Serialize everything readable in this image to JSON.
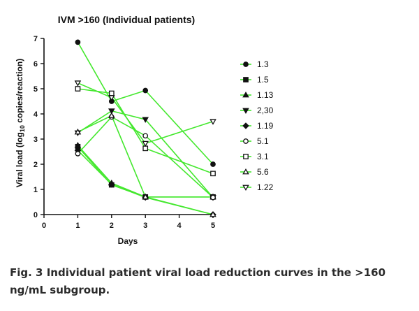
{
  "chart_data": {
    "type": "line",
    "title": "IVM >160 (Individual patients)",
    "xlabel": "Days",
    "ylabel_prefix": "Viral load (log",
    "ylabel_sub": "10",
    "ylabel_suffix": " copies/reaction)",
    "x_ticks": [
      0,
      1,
      2,
      3,
      4,
      5
    ],
    "y_ticks": [
      0,
      1,
      2,
      3,
      4,
      5,
      6,
      7
    ],
    "xlim": [
      0,
      5
    ],
    "ylim": [
      0,
      7
    ],
    "grid": false,
    "line_color": "#44e82e",
    "legend_position": "right",
    "series": [
      {
        "name": "1.3",
        "marker": "circle-filled",
        "x": [
          1,
          2,
          3,
          5
        ],
        "y": [
          6.85,
          4.5,
          4.93,
          2.0
        ]
      },
      {
        "name": "1.5",
        "marker": "square-filled",
        "x": [
          1,
          2,
          3,
          5
        ],
        "y": [
          2.7,
          1.18,
          0.7,
          0.7
        ]
      },
      {
        "name": "1.13",
        "marker": "triangle-up-filled",
        "x": [
          1,
          2,
          3,
          5
        ],
        "y": [
          2.75,
          1.25,
          0.7,
          0.7
        ]
      },
      {
        "name": "2,30",
        "marker": "triangle-down-filled",
        "x": [
          1,
          2,
          3,
          5
        ],
        "y": [
          3.25,
          4.12,
          3.78,
          0.68
        ]
      },
      {
        "name": "1.19",
        "marker": "diamond-filled",
        "x": [
          1,
          2,
          3,
          5
        ],
        "y": [
          2.55,
          1.2,
          0.68,
          0.0
        ]
      },
      {
        "name": "5.1",
        "marker": "circle-open",
        "x": [
          1,
          2,
          3,
          5
        ],
        "y": [
          2.42,
          3.88,
          3.13,
          0.68
        ]
      },
      {
        "name": "3.1",
        "marker": "square-open",
        "x": [
          1,
          2,
          3,
          5
        ],
        "y": [
          5.0,
          4.82,
          2.63,
          1.63
        ]
      },
      {
        "name": "5.6",
        "marker": "triangle-up-open",
        "x": [
          1,
          2,
          3,
          5
        ],
        "y": [
          3.28,
          3.93,
          0.7,
          0.0
        ]
      },
      {
        "name": "1.22",
        "marker": "triangle-down-open",
        "x": [
          1,
          2,
          3,
          5
        ],
        "y": [
          5.23,
          4.65,
          2.83,
          3.7
        ]
      }
    ]
  },
  "caption": {
    "label": "Fig. 3",
    "text": "Individual patient viral load reduction curves in the >160 ng/mL subgroup."
  }
}
